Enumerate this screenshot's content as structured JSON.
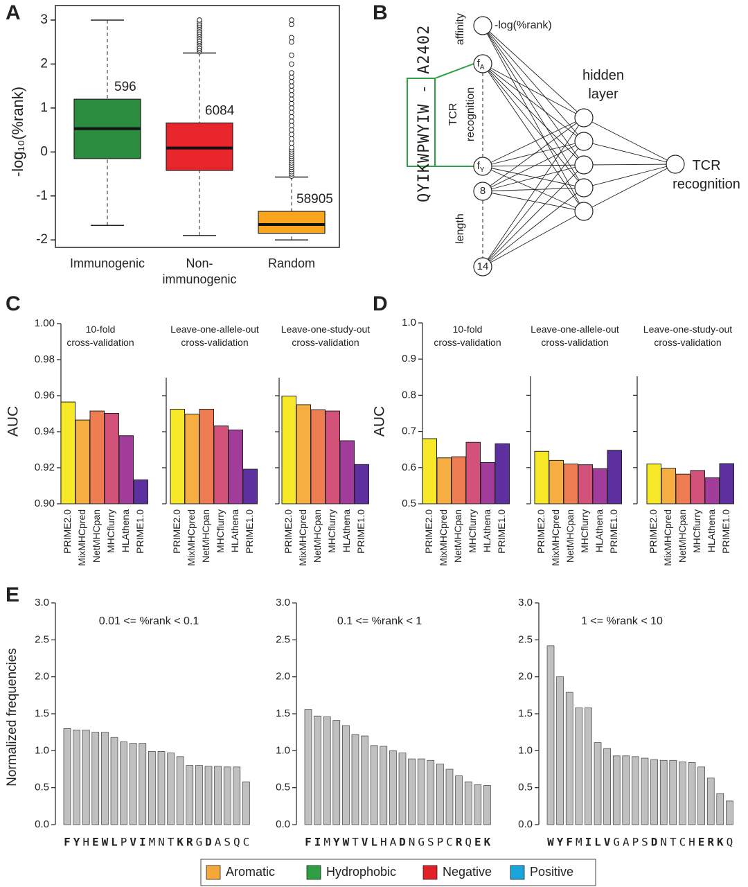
{
  "chart_data": [
    {
      "type": "box",
      "panel": "A",
      "y_label": "-log₁₀(%rank)",
      "categories": [
        "Immunogenic",
        "Non-\nimmunogenic",
        "Random"
      ],
      "colors": [
        "#2b8c3f",
        "#e8252a",
        "#f8a51d"
      ],
      "counts": [
        596,
        6084,
        58905
      ],
      "boxes": [
        {
          "low": -1.67,
          "q1": -0.15,
          "median": 0.53,
          "q3": 1.2,
          "high": 3.0,
          "outliers": []
        },
        {
          "low": -1.9,
          "q1": -0.42,
          "median": 0.09,
          "q3": 0.66,
          "high": 2.25,
          "outliers": [
            2.28,
            2.32,
            2.36,
            2.4,
            2.44,
            2.48,
            2.52,
            2.56,
            2.6,
            2.64,
            2.68,
            2.72,
            2.76,
            2.8,
            2.84,
            2.88,
            2.92,
            2.96,
            3.0
          ]
        },
        {
          "low": -2.0,
          "q1": -1.85,
          "median": -1.65,
          "q3": -1.35,
          "high": -0.57,
          "outliers": [
            -0.55,
            -0.5,
            -0.45,
            -0.4,
            -0.35,
            -0.3,
            -0.25,
            -0.2,
            -0.15,
            -0.1,
            -0.05,
            0.0,
            0.05,
            0.1,
            0.2,
            0.3,
            0.4,
            0.5,
            0.6,
            0.7,
            0.8,
            0.9,
            1.0,
            1.1,
            1.2,
            1.3,
            1.4,
            1.5,
            1.6,
            1.7,
            1.8,
            2.0,
            2.2,
            2.5,
            2.6,
            2.9,
            3.0
          ]
        }
      ],
      "ylim": [
        -2.17,
        3.33
      ],
      "yticks": [
        -2,
        -1,
        0,
        1,
        2,
        3
      ]
    },
    {
      "type": "bar",
      "panel": "C",
      "y_label": "AUC",
      "categories": [
        "PRIME2.0",
        "MixMHCpred",
        "NetMHCpan",
        "MHCflurry",
        "HLAthena",
        "PRIME1.0"
      ],
      "colors": [
        "#f7e82a",
        "#f6ad42",
        "#ef7d52",
        "#d3527a",
        "#a23c9b",
        "#5d2f9f"
      ],
      "ylim": [
        0.9,
        1.0
      ],
      "yticks": [
        {
          "value": 0.9,
          "label": "0.90"
        },
        0.92,
        0.94,
        0.96,
        0.98,
        {
          "value": 1.0,
          "label": "1.00"
        }
      ],
      "panels": [
        {
          "title": "10-fold\ncross-validation",
          "values": [
            0.9565,
            0.9465,
            0.9515,
            0.9502,
            0.9378,
            0.9133
          ]
        },
        {
          "title": "Leave-one-allele-out\ncross-validation",
          "values": [
            0.9525,
            0.9498,
            0.9525,
            0.9432,
            0.941,
            0.9192
          ]
        },
        {
          "title": "Leave-one-study-out\ncross-validation",
          "values": [
            0.9598,
            0.955,
            0.9522,
            0.9515,
            0.935,
            0.9218
          ]
        }
      ]
    },
    {
      "type": "bar",
      "panel": "D",
      "y_label": "AUC",
      "categories": [
        "PRIME2.0",
        "MixMHCpred",
        "NetMHCpan",
        "MHCflurry",
        "HLAthena",
        "PRIME1.0"
      ],
      "colors": [
        "#f7e82a",
        "#f6ad42",
        "#ef7d52",
        "#d3527a",
        "#a23c9b",
        "#5d2f9f"
      ],
      "ylim": [
        0.5,
        1.0
      ],
      "yticks": [
        0.5,
        0.6,
        0.7,
        0.8,
        0.9,
        {
          "value": 1.0,
          "label": "1.0"
        }
      ],
      "panels": [
        {
          "title": "10-fold\ncross-validation",
          "values": [
            0.68,
            0.627,
            0.63,
            0.67,
            0.614,
            0.666
          ]
        },
        {
          "title": "Leave-one-allele-out\ncross-validation",
          "values": [
            0.645,
            0.62,
            0.61,
            0.608,
            0.597,
            0.648
          ]
        },
        {
          "title": "Leave-one-study-out\ncross-validation",
          "values": [
            0.61,
            0.598,
            0.582,
            0.592,
            0.572,
            0.611
          ]
        }
      ]
    },
    {
      "type": "bar",
      "panel": "E",
      "y_label": "Normalized frequencies",
      "color": "#c0c0c0",
      "ylim": [
        0,
        3.0
      ],
      "yticks": [
        {
          "value": 0,
          "label": "0.0"
        },
        0.5,
        {
          "value": 1.0,
          "label": "1.0"
        },
        1.5,
        {
          "value": 2.0,
          "label": "2.0"
        },
        2.5,
        {
          "value": 3.0,
          "label": "3.0"
        }
      ],
      "panels": [
        {
          "title": "0.01 <= %rank < 0.1",
          "categories": [
            "F",
            "Y",
            "H",
            "E",
            "W",
            "L",
            "P",
            "V",
            "I",
            "M",
            "N",
            "T",
            "K",
            "R",
            "G",
            "D",
            "A",
            "S",
            "Q",
            "C"
          ],
          "category_colors": [
            "#f5a83a",
            "#f5a83a",
            "#222222",
            "#e22028",
            "#f5a83a",
            "#2ea043",
            "#222222",
            "#2ea043",
            "#2ea043",
            "#222222",
            "#222222",
            "#222222",
            "#1ba3dc",
            "#1ba3dc",
            "#222222",
            "#e22028",
            "#222222",
            "#222222",
            "#222222",
            "#222222"
          ],
          "values": [
            1.3,
            1.28,
            1.28,
            1.25,
            1.25,
            1.18,
            1.12,
            1.1,
            1.1,
            0.99,
            0.99,
            0.97,
            0.92,
            0.8,
            0.8,
            0.79,
            0.79,
            0.78,
            0.78,
            0.58
          ]
        },
        {
          "title": "0.1 <= %rank < 1",
          "categories": [
            "F",
            "I",
            "M",
            "Y",
            "W",
            "T",
            "V",
            "L",
            "H",
            "A",
            "D",
            "N",
            "G",
            "S",
            "P",
            "C",
            "R",
            "Q",
            "E",
            "K"
          ],
          "category_colors": [
            "#f5a83a",
            "#2ea043",
            "#222222",
            "#f5a83a",
            "#f5a83a",
            "#222222",
            "#2ea043",
            "#2ea043",
            "#222222",
            "#222222",
            "#e22028",
            "#222222",
            "#222222",
            "#222222",
            "#222222",
            "#222222",
            "#1ba3dc",
            "#222222",
            "#e22028",
            "#1ba3dc"
          ],
          "values": [
            1.56,
            1.47,
            1.46,
            1.41,
            1.34,
            1.22,
            1.2,
            1.07,
            1.06,
            1.0,
            0.97,
            0.89,
            0.89,
            0.87,
            0.82,
            0.75,
            0.66,
            0.58,
            0.54,
            0.53
          ]
        },
        {
          "title": "1 <= %rank < 10",
          "categories": [
            "W",
            "Y",
            "F",
            "M",
            "I",
            "L",
            "V",
            "G",
            "A",
            "P",
            "S",
            "D",
            "N",
            "T",
            "C",
            "H",
            "E",
            "R",
            "K",
            "Q"
          ],
          "category_colors": [
            "#f5a83a",
            "#f5a83a",
            "#f5a83a",
            "#222222",
            "#2ea043",
            "#2ea043",
            "#2ea043",
            "#222222",
            "#222222",
            "#222222",
            "#222222",
            "#e22028",
            "#222222",
            "#222222",
            "#222222",
            "#222222",
            "#e22028",
            "#1ba3dc",
            "#1ba3dc",
            "#222222"
          ],
          "values": [
            2.42,
            2.0,
            1.79,
            1.58,
            1.58,
            1.11,
            1.03,
            0.93,
            0.93,
            0.92,
            0.9,
            0.88,
            0.87,
            0.87,
            0.85,
            0.84,
            0.78,
            0.63,
            0.42,
            0.32
          ]
        }
      ],
      "legend": [
        {
          "name": "Aromatic",
          "color": "#f5a83a"
        },
        {
          "name": "Hydrophobic",
          "color": "#2ea043"
        },
        {
          "name": "Negative",
          "color": "#e22028"
        },
        {
          "name": "Positive",
          "color": "#1ba3dc"
        }
      ]
    }
  ],
  "diagram": {
    "panel": "B",
    "peptide": "QYIKWPWYIW - A2402",
    "input_labels": [
      "affinity",
      "TCR\nrecognition",
      "length"
    ],
    "affinity_label": "-log(%rank)",
    "feature_nodes": [
      {
        "text": "f",
        "sub": "A"
      },
      {
        "text": "f",
        "sub": "Y"
      },
      {
        "text": "8"
      },
      {
        "text": "14"
      }
    ],
    "hidden_label": "hidden\nlayer",
    "output_label": "TCR\nrecognition"
  }
}
